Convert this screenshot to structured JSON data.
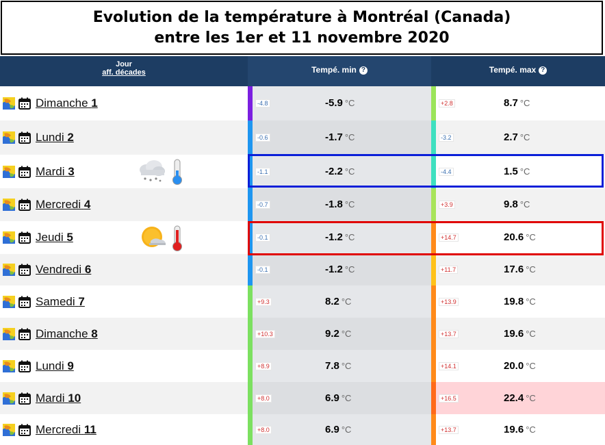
{
  "title": {
    "line1": "Evolution de la température à Montréal (Canada)",
    "line2": "entre les 1er et 11 novembre 2020"
  },
  "header": {
    "jour": "Jour",
    "decades_link": "aff. décades",
    "min": "Tempé. min",
    "max": "Tempé. max",
    "help_glyph": "?"
  },
  "unit": "°C",
  "rows": [
    {
      "day": "Dimanche",
      "num": "1",
      "min": "-5.9",
      "min_anom": "-4.8",
      "min_color": "#7b1fe0",
      "min_anom_color": "#3a6fb0",
      "max": "8.7",
      "max_anom": "+2.8",
      "max_color": "#9be45a",
      "max_anom_color": "#d03030"
    },
    {
      "day": "Lundi",
      "num": "2",
      "min": "-1.7",
      "min_anom": "-0.6",
      "min_color": "#1e96f0",
      "min_anom_color": "#3a6fb0",
      "max": "2.7",
      "max_anom": "-3.2",
      "max_color": "#3ee0c0",
      "max_anom_color": "#3a6fb0"
    },
    {
      "day": "Mardi",
      "num": "3",
      "min": "-2.2",
      "min_anom": "-1.1",
      "min_color": "#1e96f0",
      "min_anom_color": "#3a6fb0",
      "max": "1.5",
      "max_anom": "-4.4",
      "max_color": "#3ee0c0",
      "max_anom_color": "#3a6fb0",
      "weather": "snow-cloud-icon",
      "thermo": "thermometer-cold-icon"
    },
    {
      "day": "Mercredi",
      "num": "4",
      "min": "-1.8",
      "min_anom": "-0.7",
      "min_color": "#1e96f0",
      "min_anom_color": "#3a6fb0",
      "max": "9.8",
      "max_anom": "+3.9",
      "max_color": "#a8e45a",
      "max_anom_color": "#d03030"
    },
    {
      "day": "Jeudi",
      "num": "5",
      "min": "-1.2",
      "min_anom": "-0.1",
      "min_color": "#1e96f0",
      "min_anom_color": "#3a6fb0",
      "max": "20.6",
      "max_anom": "+14.7",
      "max_color": "#ff8a1a",
      "max_anom_color": "#d03030",
      "weather": "sun-haze-icon",
      "thermo": "thermometer-hot-icon"
    },
    {
      "day": "Vendredi",
      "num": "6",
      "min": "-1.2",
      "min_anom": "-0.1",
      "min_color": "#1e96f0",
      "min_anom_color": "#3a6fb0",
      "max": "17.6",
      "max_anom": "+11.7",
      "max_color": "#ffc21a",
      "max_anom_color": "#d03030"
    },
    {
      "day": "Samedi",
      "num": "7",
      "min": "8.2",
      "min_anom": "+9.3",
      "min_color": "#7ce060",
      "min_anom_color": "#d03030",
      "max": "19.8",
      "max_anom": "+13.9",
      "max_color": "#ff8a1a",
      "max_anom_color": "#d03030"
    },
    {
      "day": "Dimanche",
      "num": "8",
      "min": "9.2",
      "min_anom": "+10.3",
      "min_color": "#7ce060",
      "min_anom_color": "#d03030",
      "max": "19.6",
      "max_anom": "+13.7",
      "max_color": "#ff8a1a",
      "max_anom_color": "#d03030"
    },
    {
      "day": "Lundi",
      "num": "9",
      "min": "7.8",
      "min_anom": "+8.9",
      "min_color": "#7ce060",
      "min_anom_color": "#d03030",
      "max": "20.0",
      "max_anom": "+14.1",
      "max_color": "#ff8a1a",
      "max_anom_color": "#d03030"
    },
    {
      "day": "Mardi",
      "num": "10",
      "min": "6.9",
      "min_anom": "+8.0",
      "min_color": "#7ce060",
      "min_anom_color": "#d03030",
      "max": "22.4",
      "max_anom": "+16.5",
      "max_color": "#ff6a1a",
      "max_anom_color": "#d03030",
      "max_bg": "#ffd4d8"
    },
    {
      "day": "Mercredi",
      "num": "11",
      "min": "6.9",
      "min_anom": "+8.0",
      "min_color": "#7ce060",
      "min_anom_color": "#d03030",
      "max": "19.6",
      "max_anom": "+13.7",
      "max_color": "#ff8a1a",
      "max_anom_color": "#d03030"
    }
  ],
  "highlights": {
    "blue_row": "Mardi 3",
    "red_row": "Jeudi 5",
    "blue_color": "#0a1fd8",
    "red_color": "#e00000"
  }
}
